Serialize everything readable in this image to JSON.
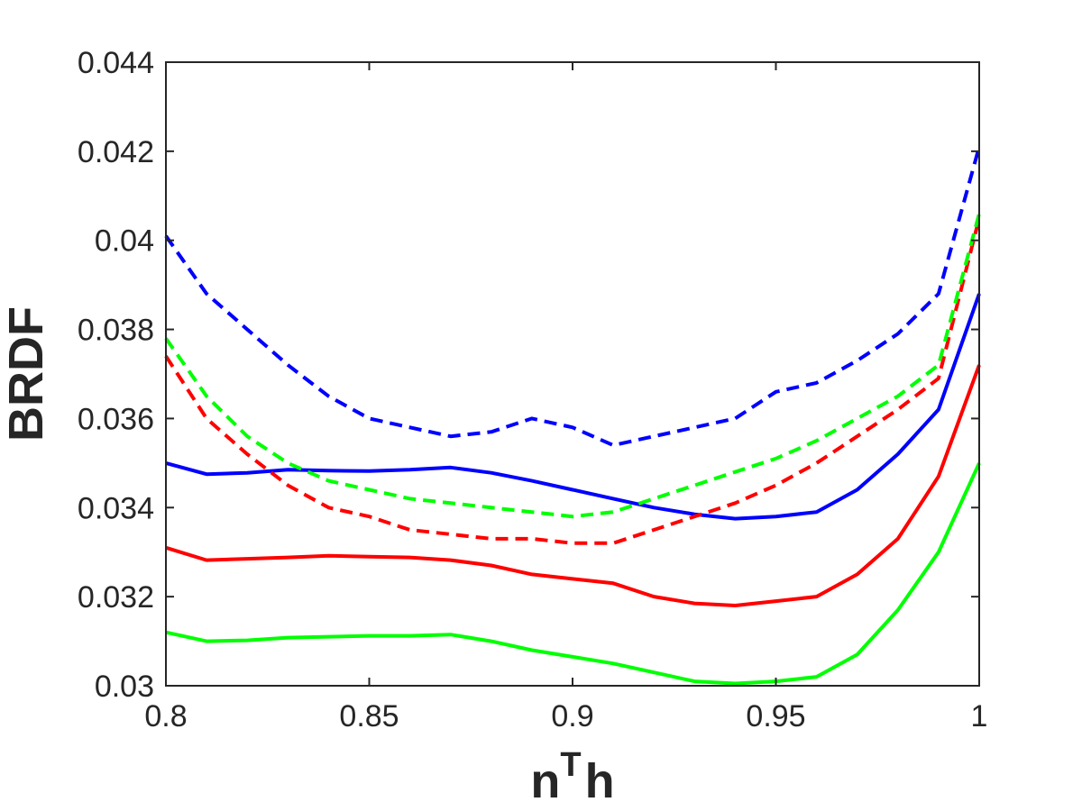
{
  "chart_data": {
    "type": "line",
    "title": "",
    "xlabel": "n",
    "xlabel_sup": "T",
    "xlabel_tail": "h",
    "ylabel": "BRDF",
    "xlim": [
      0.8,
      1.0
    ],
    "ylim": [
      0.03,
      0.044
    ],
    "xticks": [
      0.8,
      0.85,
      0.9,
      0.95,
      1.0
    ],
    "xtick_labels": [
      "0.8",
      "0.85",
      "0.9",
      "0.95",
      "1"
    ],
    "yticks": [
      0.03,
      0.032,
      0.034,
      0.036,
      0.038,
      0.04,
      0.042,
      0.044
    ],
    "ytick_labels": [
      "0.03",
      "0.032",
      "0.034",
      "0.036",
      "0.038",
      "0.04",
      "0.042",
      "0.044"
    ],
    "grid": false,
    "legend": "none",
    "x": [
      0.8,
      0.81,
      0.82,
      0.83,
      0.84,
      0.85,
      0.86,
      0.87,
      0.88,
      0.89,
      0.9,
      0.91,
      0.92,
      0.93,
      0.94,
      0.95,
      0.96,
      0.97,
      0.98,
      0.99,
      1.0
    ],
    "series": [
      {
        "color": "#0000ff",
        "line_style": "solid",
        "values": [
          0.035,
          0.03475,
          0.03478,
          0.03485,
          0.03483,
          0.03482,
          0.03485,
          0.0349,
          0.03478,
          0.0346,
          0.0344,
          0.0342,
          0.034,
          0.03385,
          0.03375,
          0.0338,
          0.0339,
          0.0344,
          0.0352,
          0.0362,
          0.0388
        ]
      },
      {
        "color": "#ff0000",
        "line_style": "solid",
        "values": [
          0.0331,
          0.03282,
          0.03285,
          0.03288,
          0.03292,
          0.0329,
          0.03288,
          0.03282,
          0.0327,
          0.0325,
          0.0324,
          0.0323,
          0.032,
          0.03185,
          0.0318,
          0.0319,
          0.032,
          0.0325,
          0.0333,
          0.0347,
          0.0372
        ]
      },
      {
        "color": "#00ff00",
        "line_style": "solid",
        "values": [
          0.0312,
          0.031,
          0.03102,
          0.03108,
          0.0311,
          0.03112,
          0.03112,
          0.03115,
          0.031,
          0.0308,
          0.03065,
          0.0305,
          0.0303,
          0.0301,
          0.03005,
          0.0301,
          0.0302,
          0.0307,
          0.0317,
          0.033,
          0.035
        ]
      },
      {
        "color": "#0000ff",
        "line_style": "dashed",
        "values": [
          0.0401,
          0.0388,
          0.038,
          0.0372,
          0.0365,
          0.036,
          0.0358,
          0.0356,
          0.0357,
          0.036,
          0.0358,
          0.0354,
          0.0356,
          0.0358,
          0.036,
          0.0366,
          0.0368,
          0.0373,
          0.0379,
          0.0388,
          0.0421
        ]
      },
      {
        "color": "#ff0000",
        "line_style": "dashed",
        "values": [
          0.0374,
          0.036,
          0.0352,
          0.0345,
          0.034,
          0.0338,
          0.0335,
          0.0334,
          0.0333,
          0.0333,
          0.0332,
          0.0332,
          0.0335,
          0.0338,
          0.0341,
          0.0345,
          0.035,
          0.0356,
          0.0362,
          0.0369,
          0.0405
        ]
      },
      {
        "color": "#00ff00",
        "line_style": "dashed",
        "values": [
          0.0378,
          0.0365,
          0.0356,
          0.035,
          0.0346,
          0.0344,
          0.0342,
          0.0341,
          0.034,
          0.0339,
          0.0338,
          0.0339,
          0.0342,
          0.0345,
          0.0348,
          0.0351,
          0.0355,
          0.036,
          0.0365,
          0.0372,
          0.0406
        ]
      }
    ]
  }
}
